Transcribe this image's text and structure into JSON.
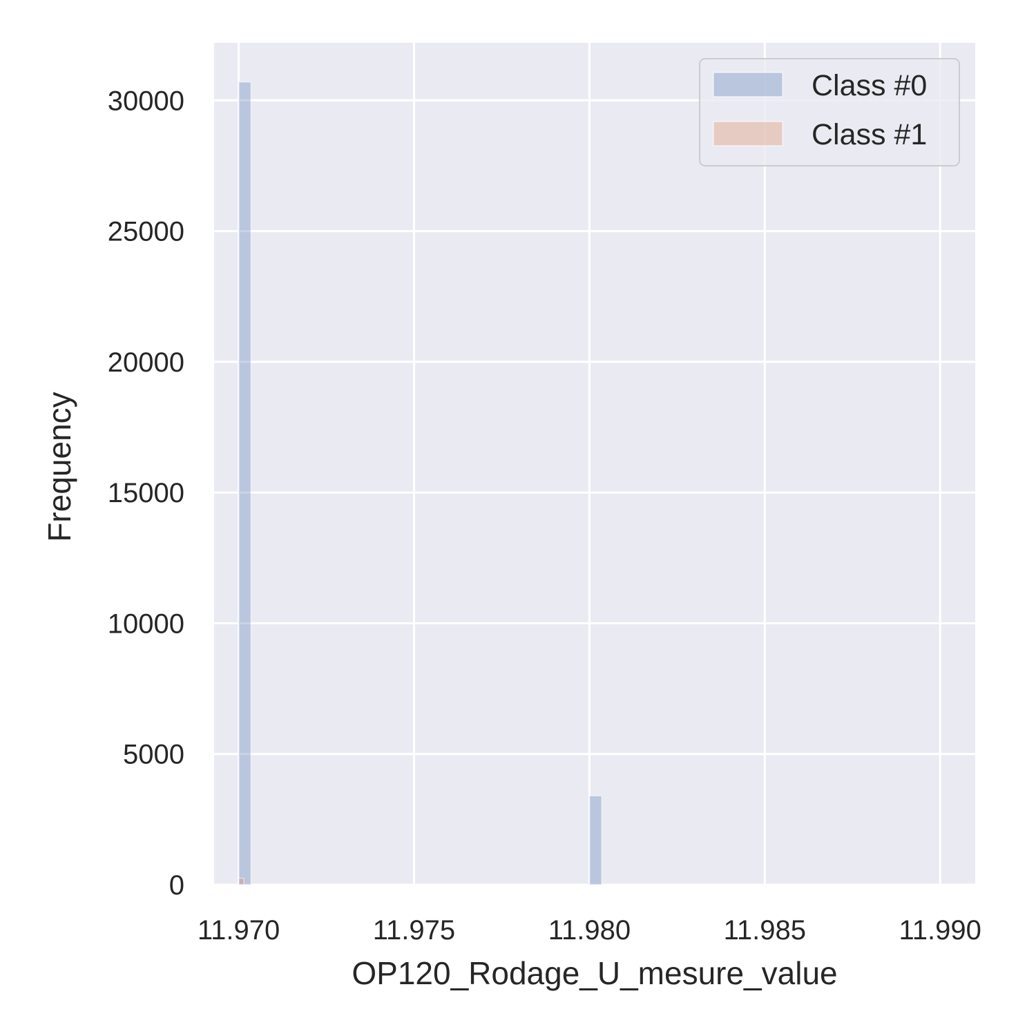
{
  "chart_data": {
    "type": "bar",
    "xlabel": "OP120_Rodage_U_mesure_value",
    "ylabel": "Frequency",
    "xlim": [
      11.9693,
      11.991
    ],
    "ylim": [
      0,
      32200
    ],
    "x_ticks": [
      11.97,
      11.975,
      11.98,
      11.985,
      11.99
    ],
    "x_tick_labels": [
      "11.970",
      "11.975",
      "11.980",
      "11.985",
      "11.990"
    ],
    "y_ticks": [
      0,
      5000,
      10000,
      15000,
      20000,
      25000,
      30000
    ],
    "y_tick_labels": [
      "0",
      "5000",
      "10000",
      "15000",
      "20000",
      "25000",
      "30000"
    ],
    "grid": true,
    "legend_position": "top-right",
    "colors": {
      "background": "#eaeaf2",
      "grid": "#ffffff",
      "class0": "#4c72b0",
      "class1": "#dd8452"
    },
    "series": [
      {
        "name": "Class #0",
        "color": "#4c72b0",
        "bars": [
          {
            "x0": 11.97,
            "x1": 11.97035,
            "value": 30700
          },
          {
            "x0": 11.98,
            "x1": 11.98035,
            "value": 3400
          }
        ]
      },
      {
        "name": "Class #1",
        "color": "#dd8452",
        "bars": [
          {
            "x0": 11.97,
            "x1": 11.97015,
            "value": 250
          }
        ]
      }
    ]
  }
}
